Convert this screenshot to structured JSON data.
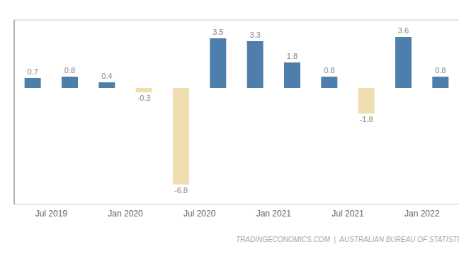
{
  "chart_data": {
    "type": "bar",
    "categories": [
      "Jul 2019",
      null,
      "Jan 2020",
      null,
      "Jul 2020",
      null,
      "Jan 2021",
      null,
      "Jul 2021",
      null,
      "Jan 2022",
      null
    ],
    "values": [
      0.7,
      0.8,
      0.4,
      -0.3,
      -6.8,
      3.5,
      3.3,
      1.8,
      0.8,
      -1.8,
      3.6,
      0.8
    ],
    "colors": [
      "#4e7fac",
      "#4e7fac",
      "#4e7fac",
      "#f0deb0",
      "#f0deb0",
      "#4e7fac",
      "#4e7fac",
      "#4e7fac",
      "#4e7fac",
      "#f0deb0",
      "#4e7fac",
      "#4e7fac"
    ],
    "ylim": [
      -8.2,
      4.8
    ],
    "yticks": [
      -8,
      -6,
      -4,
      -2,
      0,
      2,
      4
    ],
    "grid": true,
    "data_labels": true,
    "tick_labels": "x",
    "annotations": [
      "TRADINGECONOMICS.COM  |  AUSTRALIAN BUREAU OF STATISTI"
    ]
  }
}
